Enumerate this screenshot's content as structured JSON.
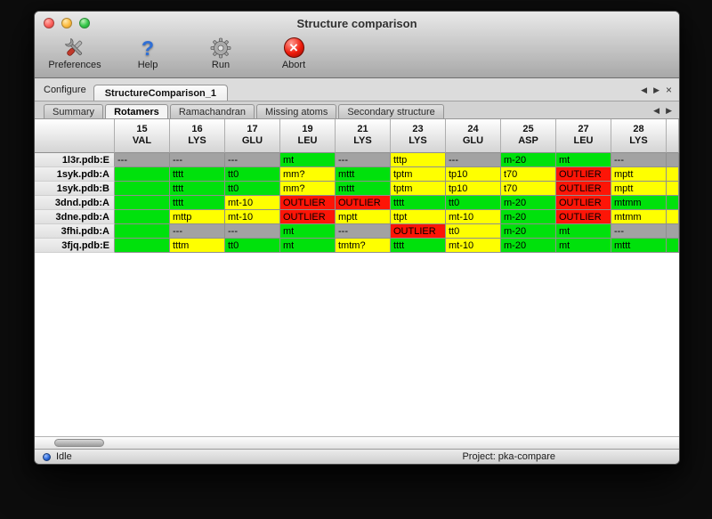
{
  "window": {
    "title": "Structure comparison"
  },
  "toolbar": {
    "items": [
      {
        "id": "preferences",
        "label": "Preferences",
        "icon": "tools-icon"
      },
      {
        "id": "help",
        "label": "Help",
        "icon": "question-icon",
        "glyph": "?"
      },
      {
        "id": "run",
        "label": "Run",
        "icon": "gear-icon"
      },
      {
        "id": "abort",
        "label": "Abort",
        "icon": "abort-icon",
        "glyph": "×"
      }
    ]
  },
  "configure": {
    "label": "Configure",
    "tab_label": "StructureComparison_1",
    "controls": [
      "◀",
      "▶",
      "×"
    ]
  },
  "tabs": {
    "items": [
      "Summary",
      "Rotamers",
      "Ramachandran",
      "Missing atoms",
      "Secondary structure"
    ],
    "active": "Rotamers",
    "controls": [
      "◀",
      "▶"
    ]
  },
  "table": {
    "columns": [
      {
        "num": "15",
        "res": "VAL"
      },
      {
        "num": "16",
        "res": "LYS"
      },
      {
        "num": "17",
        "res": "GLU"
      },
      {
        "num": "19",
        "res": "LEU"
      },
      {
        "num": "21",
        "res": "LYS"
      },
      {
        "num": "23",
        "res": "LYS"
      },
      {
        "num": "24",
        "res": "GLU"
      },
      {
        "num": "25",
        "res": "ASP"
      },
      {
        "num": "27",
        "res": "LEU"
      },
      {
        "num": "28",
        "res": "LYS"
      }
    ],
    "rows": [
      {
        "label": "1l3r.pdb:E",
        "partial": "gray",
        "cells": [
          [
            "---",
            "gray"
          ],
          [
            "---",
            "gray"
          ],
          [
            "---",
            "gray"
          ],
          [
            "mt",
            "green"
          ],
          [
            "---",
            "gray"
          ],
          [
            "tttp",
            "yellow"
          ],
          [
            "---",
            "gray"
          ],
          [
            "m-20",
            "green"
          ],
          [
            "mt",
            "green"
          ],
          [
            "---",
            "gray"
          ]
        ]
      },
      {
        "label": "1syk.pdb:A",
        "partial": "yellow",
        "cells": [
          [
            "",
            "green"
          ],
          [
            "tttt",
            "green"
          ],
          [
            "tt0",
            "green"
          ],
          [
            "mm?",
            "yellow"
          ],
          [
            "mttt",
            "green"
          ],
          [
            "tptm",
            "yellow"
          ],
          [
            "tp10",
            "yellow"
          ],
          [
            "t70",
            "yellow"
          ],
          [
            "OUTLIER",
            "red"
          ],
          [
            "mptt",
            "yellow"
          ]
        ]
      },
      {
        "label": "1syk.pdb:B",
        "partial": "yellow",
        "cells": [
          [
            "",
            "green"
          ],
          [
            "tttt",
            "green"
          ],
          [
            "tt0",
            "green"
          ],
          [
            "mm?",
            "yellow"
          ],
          [
            "mttt",
            "green"
          ],
          [
            "tptm",
            "yellow"
          ],
          [
            "tp10",
            "yellow"
          ],
          [
            "t70",
            "yellow"
          ],
          [
            "OUTLIER",
            "red"
          ],
          [
            "mptt",
            "yellow"
          ]
        ]
      },
      {
        "label": "3dnd.pdb:A",
        "partial": "green",
        "cells": [
          [
            "",
            "green"
          ],
          [
            "tttt",
            "green"
          ],
          [
            "mt-10",
            "yellow"
          ],
          [
            "OUTLIER",
            "red"
          ],
          [
            "OUTLIER",
            "red"
          ],
          [
            "tttt",
            "green"
          ],
          [
            "tt0",
            "green"
          ],
          [
            "m-20",
            "green"
          ],
          [
            "OUTLIER",
            "red"
          ],
          [
            "mtmm",
            "green"
          ]
        ]
      },
      {
        "label": "3dne.pdb:A",
        "partial": "yellow",
        "cells": [
          [
            "",
            "green"
          ],
          [
            "mttp",
            "yellow"
          ],
          [
            "mt-10",
            "yellow"
          ],
          [
            "OUTLIER",
            "red"
          ],
          [
            "mptt",
            "yellow"
          ],
          [
            "ttpt",
            "yellow"
          ],
          [
            "mt-10",
            "yellow"
          ],
          [
            "m-20",
            "green"
          ],
          [
            "OUTLIER",
            "red"
          ],
          [
            "mtmm",
            "yellow"
          ]
        ]
      },
      {
        "label": "3fhi.pdb:A",
        "partial": "gray",
        "cells": [
          [
            "",
            "green"
          ],
          [
            "---",
            "gray"
          ],
          [
            "---",
            "gray"
          ],
          [
            "mt",
            "green"
          ],
          [
            "---",
            "gray"
          ],
          [
            "OUTLIER",
            "red"
          ],
          [
            "tt0",
            "yellow"
          ],
          [
            "m-20",
            "green"
          ],
          [
            "mt",
            "green"
          ],
          [
            "---",
            "gray"
          ]
        ]
      },
      {
        "label": "3fjq.pdb:E",
        "partial": "green",
        "cells": [
          [
            "",
            "green"
          ],
          [
            "tttm",
            "yellow"
          ],
          [
            "tt0",
            "green"
          ],
          [
            "mt",
            "green"
          ],
          [
            "tmtm?",
            "yellow"
          ],
          [
            "tttt",
            "green"
          ],
          [
            "mt-10",
            "yellow"
          ],
          [
            "m-20",
            "green"
          ],
          [
            "mt",
            "green"
          ],
          [
            "mttt",
            "green"
          ]
        ]
      }
    ]
  },
  "status": {
    "left": "Idle",
    "right": "Project: pka-compare"
  },
  "colors": {
    "green": "#00e10c",
    "yellow": "#feff00",
    "red": "#fd1507",
    "gray": "#a2a2a2"
  }
}
